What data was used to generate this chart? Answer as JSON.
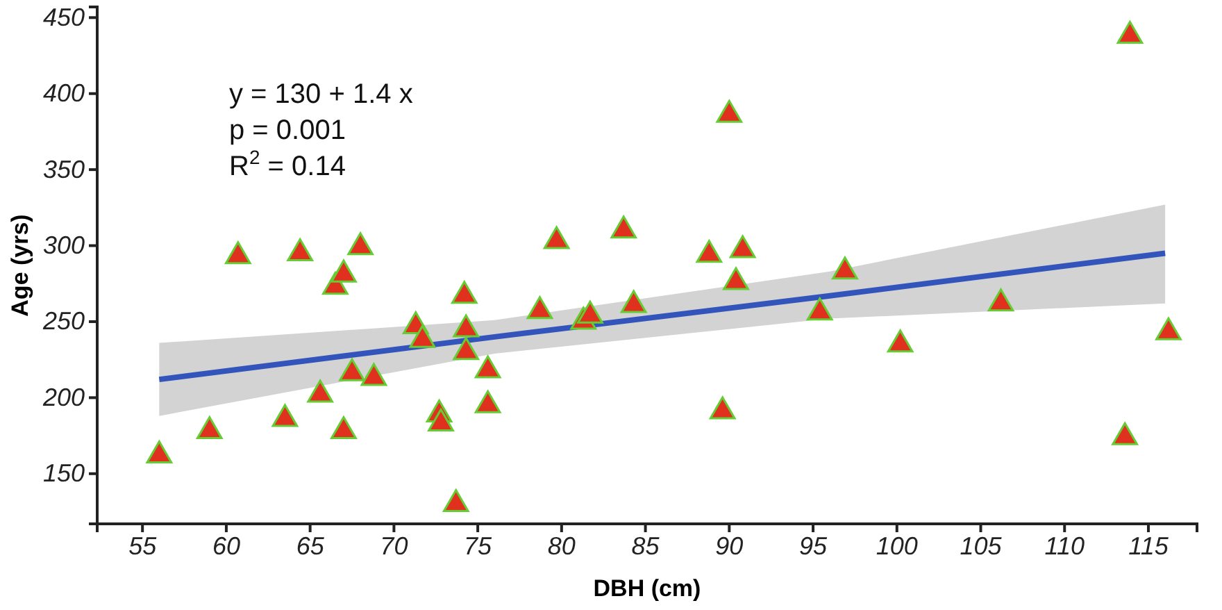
{
  "chart_data": {
    "type": "scatter",
    "xlabel": "DBH (cm)",
    "ylabel": "Age (yrs)",
    "xlim": [
      52.3,
      117.9
    ],
    "ylim": [
      117,
      457
    ],
    "xticks": [
      55,
      60,
      65,
      70,
      75,
      80,
      85,
      90,
      95,
      100,
      105,
      110,
      115
    ],
    "yticks": [
      150,
      200,
      250,
      300,
      350,
      400,
      450
    ],
    "annotations": [
      "y = 130 + 1.4 x",
      "p = 0.001",
      "R$^{2}$ = 0.14"
    ],
    "series": [
      {
        "type": "line",
        "color": "#3355bb",
        "x": [
          56,
          76,
          96,
          116
        ],
        "values": [
          212,
          240,
          267,
          295
        ],
        "lower": [
          188,
          229,
          252,
          262
        ],
        "upper": [
          236,
          251,
          283,
          327
        ]
      },
      {
        "marker": "triangle",
        "color": "#e0301e",
        "x": [
          56,
          59,
          60.7,
          63.5,
          64.4,
          65.6,
          66.5,
          67,
          67,
          67.5,
          68,
          68.8,
          71.3,
          71.7,
          72.7,
          72.8,
          73.7,
          74.2,
          74.3,
          74.3,
          75.6,
          75.6,
          78.7,
          79.7,
          81.3,
          81.7,
          83.7,
          84.3,
          88.8,
          89.6,
          90,
          90.4,
          90.8,
          95.4,
          96.9,
          100.2,
          106.2,
          113.6,
          113.9,
          116.2
        ],
        "values": [
          162,
          178,
          293,
          186,
          295,
          202,
          273,
          281,
          178,
          216,
          299,
          213,
          247,
          238,
          189,
          183,
          130,
          267,
          245,
          230,
          218,
          195,
          257,
          303,
          250,
          254,
          310,
          261,
          294,
          191,
          386,
          276,
          297,
          256,
          283,
          235,
          262,
          174,
          438,
          243
        ]
      }
    ]
  }
}
